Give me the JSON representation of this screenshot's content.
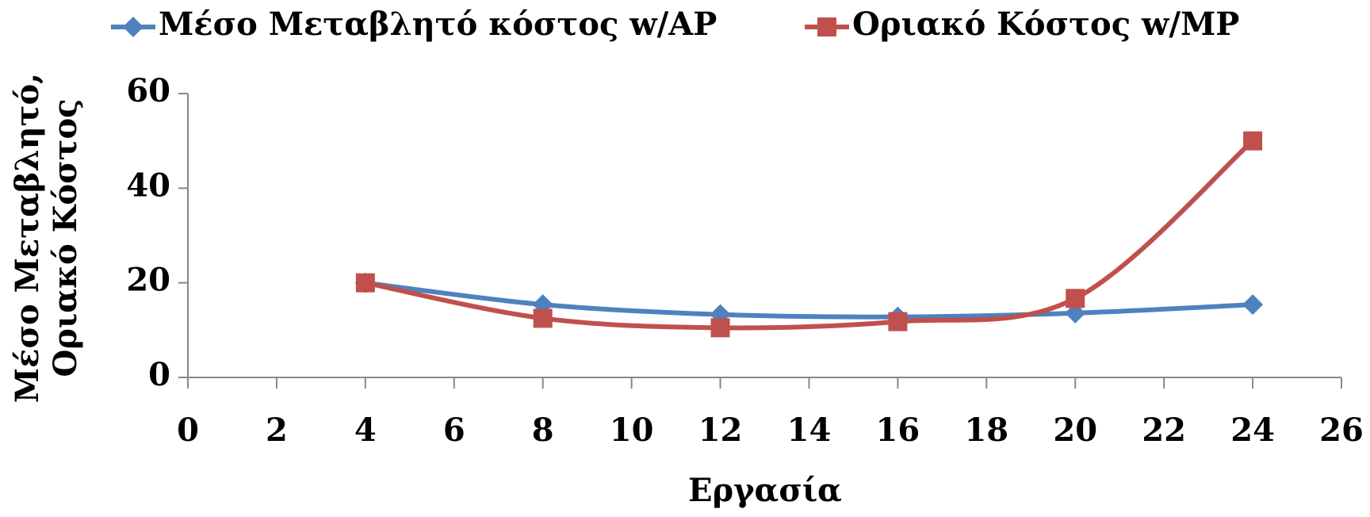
{
  "chart_data": {
    "type": "line",
    "xlabel": "Εργασία",
    "ylabel": [
      "Μέσο Μεταβλητό,",
      "Οριακό Κόστος"
    ],
    "x": [
      4,
      8,
      12,
      16,
      20,
      24
    ],
    "series": [
      {
        "name": "Μέσο Μεταβλητό κόστος w/AP",
        "color": "#4f81bd",
        "marker": "diamond",
        "values": [
          20,
          15.4,
          13.3,
          12.8,
          13.6,
          15.4
        ]
      },
      {
        "name": "Οριακό Κόστος w/MP",
        "color": "#c0504d",
        "marker": "square",
        "values": [
          20,
          12.5,
          10.5,
          11.8,
          16.7,
          50
        ]
      }
    ],
    "xlim": [
      0,
      26
    ],
    "xticks": [
      0,
      2,
      4,
      6,
      8,
      10,
      12,
      14,
      16,
      18,
      20,
      22,
      24,
      26
    ],
    "ylim": [
      0,
      60
    ],
    "yticks": [
      0,
      20,
      40,
      60
    ],
    "legend": "top",
    "smooth": true
  }
}
